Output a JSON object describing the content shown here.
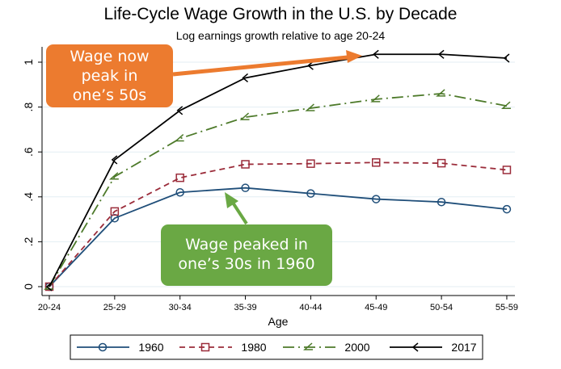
{
  "chart_data": {
    "type": "line",
    "title": "Life-Cycle Wage Growth in the U.S. by Decade",
    "subtitle": "Log earnings growth relative to age 20-24",
    "xlabel": "Age",
    "ylabel": "",
    "categories": [
      "20-24",
      "25-29",
      "30-34",
      "35-39",
      "40-44",
      "45-49",
      "50-54",
      "55-59"
    ],
    "ylim": [
      0,
      1.05
    ],
    "yticks": [
      0,
      0.2,
      0.4,
      0.6,
      0.8,
      1
    ],
    "ytick_labels": [
      "0",
      ".2",
      ".4",
      ".6",
      ".8",
      "1"
    ],
    "grid": true,
    "legend_position": "bottom",
    "series": [
      {
        "name": "1960",
        "color": "#1f4e79",
        "marker": "circle",
        "dash": "solid",
        "values": [
          0,
          0.305,
          0.42,
          0.44,
          0.415,
          0.39,
          0.377,
          0.345
        ]
      },
      {
        "name": "1980",
        "color": "#9b2c3a",
        "marker": "square",
        "dash": "dash",
        "values": [
          0,
          0.335,
          0.485,
          0.545,
          0.548,
          0.553,
          0.55,
          0.52
        ]
      },
      {
        "name": "2000",
        "color": "#4d7a2a",
        "marker": "triangle",
        "dash": "dashdot",
        "values": [
          0,
          0.49,
          0.66,
          0.755,
          0.795,
          0.835,
          0.86,
          0.805
        ]
      },
      {
        "name": "2017",
        "color": "#000000",
        "marker": "diamond",
        "dash": "solid",
        "values": [
          0,
          0.565,
          0.785,
          0.93,
          0.985,
          1.035,
          1.035,
          1.018
        ]
      }
    ],
    "annotations": [
      {
        "lines": [
          "Wage now",
          "peak in",
          "one’s 50s"
        ],
        "color": "#ec7b2f",
        "points_to": "45-49"
      },
      {
        "lines": [
          "Wage peaked in",
          "one’s 30s in 1960"
        ],
        "color": "#6aa844",
        "points_to": "35-39"
      }
    ]
  }
}
